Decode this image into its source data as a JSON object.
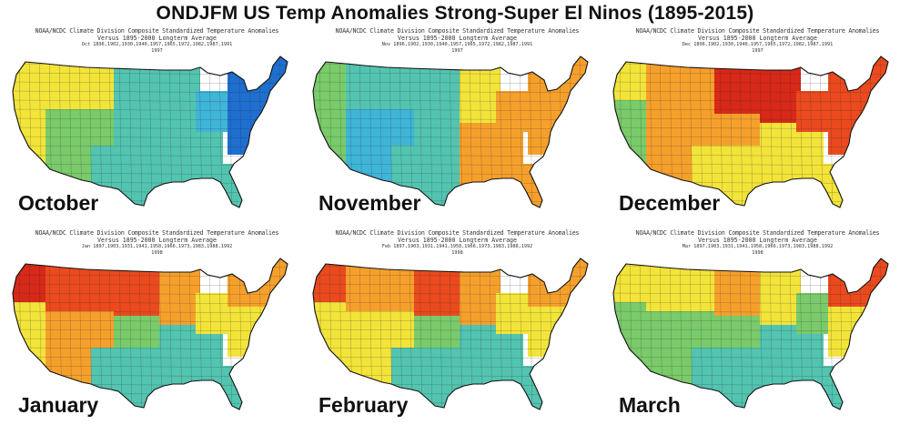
{
  "title": "ONDJFM US Temp Anomalies Strong-Super El Ninos (1895-2015)",
  "header": {
    "line1": "NOAA/NCDC Climate Division Composite Standardized Temperature Anomalies",
    "line2": "Versus 1895-2000 Longterm Average"
  },
  "colors": {
    "strong_cold": "#1f6fd0",
    "cold": "#3fb5d8",
    "cool": "#53c4b0",
    "cool_green": "#7acb6a",
    "neutral": "#ffffff",
    "warm_yellow": "#f3e43a",
    "warm_orange": "#f6a02c",
    "hot": "#ea4a1e",
    "very_hot": "#d82818"
  },
  "panels": [
    {
      "month": "October",
      "years_line": "Oct  1896,1902,1930,1940,1957,1965,1972,1982,1987,1991",
      "extra_year": "1997",
      "zones": {
        "nw": "warm_yellow",
        "sw": "warm_yellow",
        "n_rockies": "warm_yellow",
        "s_rockies": "cool_green",
        "n_plains": "cool",
        "s_plains": "cool",
        "midwest": "cool",
        "southeast": "cool",
        "ohio_valley": "cold",
        "northeast": "strong_cold",
        "mid_atlantic": "strong_cold",
        "florida": "cool",
        "texas": "cool"
      }
    },
    {
      "month": "November",
      "years_line": "Nov  1896,1902,1930,1940,1957,1965,1972,1982,1987,1991",
      "extra_year": "1997",
      "zones": {
        "nw": "cool_green",
        "sw": "cool_green",
        "n_rockies": "cool",
        "s_rockies": "cold",
        "n_plains": "cool",
        "s_plains": "cool",
        "midwest": "warm_yellow",
        "southeast": "warm_orange",
        "ohio_valley": "warm_orange",
        "northeast": "warm_orange",
        "mid_atlantic": "warm_orange",
        "florida": "warm_orange",
        "texas": "cool"
      }
    },
    {
      "month": "December",
      "years_line": "Dec  1896,1902,1930,1940,1957,1965,1972,1982,1987,1991",
      "extra_year": "1997",
      "zones": {
        "nw": "warm_yellow",
        "sw": "cool_green",
        "n_rockies": "warm_orange",
        "s_rockies": "warm_orange",
        "n_plains": "very_hot",
        "s_plains": "warm_orange",
        "midwest": "very_hot",
        "southeast": "warm_yellow",
        "ohio_valley": "hot",
        "northeast": "hot",
        "mid_atlantic": "hot",
        "florida": "warm_yellow",
        "texas": "warm_yellow"
      }
    },
    {
      "month": "January",
      "years_line": "Jan  1897,1903,1931,1941,1958,1966,1973,1983,1988,1992",
      "extra_year": "1998",
      "zones": {
        "nw": "very_hot",
        "sw": "warm_yellow",
        "n_rockies": "hot",
        "s_rockies": "warm_orange",
        "n_plains": "hot",
        "s_plains": "cool_green",
        "midwest": "warm_orange",
        "southeast": "cool",
        "ohio_valley": "warm_yellow",
        "northeast": "warm_orange",
        "mid_atlantic": "warm_yellow",
        "florida": "cool",
        "texas": "cool"
      }
    },
    {
      "month": "February",
      "years_line": "Feb  1897,1903,1931,1941,1958,1966,1973,1983,1988,1992",
      "extra_year": "1998",
      "zones": {
        "nw": "hot",
        "sw": "warm_yellow",
        "n_rockies": "warm_orange",
        "s_rockies": "warm_yellow",
        "n_plains": "hot",
        "s_plains": "cool_green",
        "midwest": "warm_orange",
        "southeast": "cool",
        "ohio_valley": "warm_yellow",
        "northeast": "warm_orange",
        "mid_atlantic": "warm_yellow",
        "florida": "cool",
        "texas": "cool"
      }
    },
    {
      "month": "March",
      "years_line": "Mar  1897,1903,1931,1941,1958,1966,1973,1983,1988,1992",
      "extra_year": "1998",
      "zones": {
        "nw": "warm_yellow",
        "sw": "cool_green",
        "n_rockies": "warm_yellow",
        "s_rockies": "cool_green",
        "n_plains": "warm_orange",
        "s_plains": "cool_green",
        "midwest": "warm_yellow",
        "southeast": "cool",
        "ohio_valley": "cool_green",
        "northeast": "hot",
        "mid_atlantic": "warm_yellow",
        "florida": "cool",
        "texas": "cool"
      }
    }
  ]
}
